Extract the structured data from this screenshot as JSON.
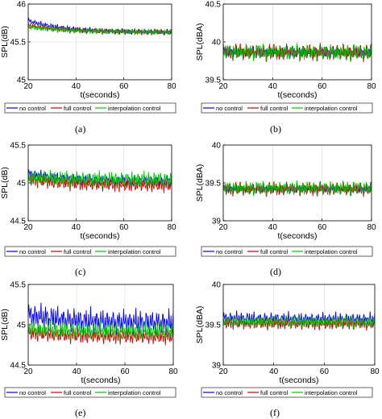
{
  "figure": {
    "legend_labels": [
      "no control",
      "full control",
      "interpolation control"
    ],
    "series_colors": [
      "#0000ff",
      "#d00000",
      "#00c800"
    ],
    "xlabel": "t(seconds)",
    "panels": [
      "(a)",
      "(b)",
      "(c)",
      "(d)",
      "(e)",
      "(f)"
    ]
  },
  "chart_data": [
    {
      "panel": "(a)",
      "type": "line",
      "title": "",
      "xlabel": "t(seconds)",
      "ylabel": "SPL(dB)",
      "xlim": [
        20,
        80
      ],
      "ylim": [
        45,
        46
      ],
      "xticks": [
        20,
        40,
        60,
        80
      ],
      "yticks": [
        45,
        45.5,
        46
      ],
      "grid": true,
      "legend_position": "below",
      "series": [
        {
          "name": "no control",
          "color": "#0000ff",
          "mean_start": 45.78,
          "mean_end": 45.63,
          "amplitude": 0.04
        },
        {
          "name": "full control",
          "color": "#d00000",
          "mean_start": 45.72,
          "mean_end": 45.63,
          "amplitude": 0.04
        },
        {
          "name": "interpolation control",
          "color": "#00c800",
          "mean_start": 45.7,
          "mean_end": 45.63,
          "amplitude": 0.04
        }
      ]
    },
    {
      "panel": "(b)",
      "type": "line",
      "title": "",
      "xlabel": "t(seconds)",
      "ylabel": "SPL(dBA)",
      "xlim": [
        20,
        80
      ],
      "ylim": [
        39.5,
        40.5
      ],
      "xticks": [
        20,
        40,
        60,
        80
      ],
      "yticks": [
        39.5,
        40,
        40.5
      ],
      "grid": true,
      "legend_position": "below",
      "series": [
        {
          "name": "no control",
          "color": "#0000ff",
          "mean_start": 39.87,
          "mean_end": 39.86,
          "amplitude": 0.08
        },
        {
          "name": "full control",
          "color": "#d00000",
          "mean_start": 39.87,
          "mean_end": 39.86,
          "amplitude": 0.12
        },
        {
          "name": "interpolation control",
          "color": "#00c800",
          "mean_start": 39.87,
          "mean_end": 39.86,
          "amplitude": 0.12
        }
      ]
    },
    {
      "panel": "(c)",
      "type": "line",
      "title": "",
      "xlabel": "t(seconds)",
      "ylabel": "SPL(dB)",
      "xlim": [
        20,
        80
      ],
      "ylim": [
        44.5,
        45.5
      ],
      "xticks": [
        20,
        40,
        60,
        80
      ],
      "yticks": [
        44.5,
        45,
        45.5
      ],
      "grid": true,
      "legend_position": "below",
      "series": [
        {
          "name": "no control",
          "color": "#0000ff",
          "mean_start": 45.12,
          "mean_end": 45.02,
          "amplitude": 0.08
        },
        {
          "name": "full control",
          "color": "#d00000",
          "mean_start": 45.05,
          "mean_end": 44.97,
          "amplitude": 0.1
        },
        {
          "name": "interpolation control",
          "color": "#00c800",
          "mean_start": 45.07,
          "mean_end": 45.04,
          "amplitude": 0.12
        }
      ]
    },
    {
      "panel": "(d)",
      "type": "line",
      "title": "",
      "xlabel": "t(seconds)",
      "ylabel": "SPL(dBA)",
      "xlim": [
        20,
        80
      ],
      "ylim": [
        39,
        40
      ],
      "xticks": [
        20,
        40,
        60,
        80
      ],
      "yticks": [
        39,
        39.5,
        40
      ],
      "grid": true,
      "legend_position": "below",
      "series": [
        {
          "name": "no control",
          "color": "#0000ff",
          "mean_start": 39.42,
          "mean_end": 39.42,
          "amplitude": 0.06
        },
        {
          "name": "full control",
          "color": "#d00000",
          "mean_start": 39.42,
          "mean_end": 39.42,
          "amplitude": 0.1
        },
        {
          "name": "interpolation control",
          "color": "#00c800",
          "mean_start": 39.43,
          "mean_end": 39.43,
          "amplitude": 0.1
        }
      ]
    },
    {
      "panel": "(e)",
      "type": "line",
      "title": "",
      "xlabel": "t(seconds)",
      "ylabel": "SPL(dB)",
      "xlim": [
        20,
        80
      ],
      "ylim": [
        44.5,
        45.5
      ],
      "xticks": [
        20,
        40,
        60,
        80
      ],
      "yticks": [
        44.5,
        45,
        45.5
      ],
      "grid": true,
      "legend_position": "below",
      "series": [
        {
          "name": "no control",
          "color": "#0000ff",
          "mean_start": 45.12,
          "mean_end": 45.02,
          "amplitude": 0.18
        },
        {
          "name": "full control",
          "color": "#d00000",
          "mean_start": 44.9,
          "mean_end": 44.85,
          "amplitude": 0.1
        },
        {
          "name": "interpolation control",
          "color": "#00c800",
          "mean_start": 44.95,
          "mean_end": 44.92,
          "amplitude": 0.12
        }
      ]
    },
    {
      "panel": "(f)",
      "type": "line",
      "title": "",
      "xlabel": "t(seconds)",
      "ylabel": "SPL(dBA)",
      "xlim": [
        20,
        80
      ],
      "ylim": [
        39,
        40
      ],
      "xticks": [
        20,
        40,
        60,
        80
      ],
      "yticks": [
        39,
        39.5,
        40
      ],
      "grid": true,
      "legend_position": "below",
      "series": [
        {
          "name": "no control",
          "color": "#0000ff",
          "mean_start": 39.58,
          "mean_end": 39.56,
          "amplitude": 0.1
        },
        {
          "name": "full control",
          "color": "#d00000",
          "mean_start": 39.52,
          "mean_end": 39.51,
          "amplitude": 0.08
        },
        {
          "name": "interpolation control",
          "color": "#00c800",
          "mean_start": 39.54,
          "mean_end": 39.53,
          "amplitude": 0.08
        }
      ]
    }
  ]
}
